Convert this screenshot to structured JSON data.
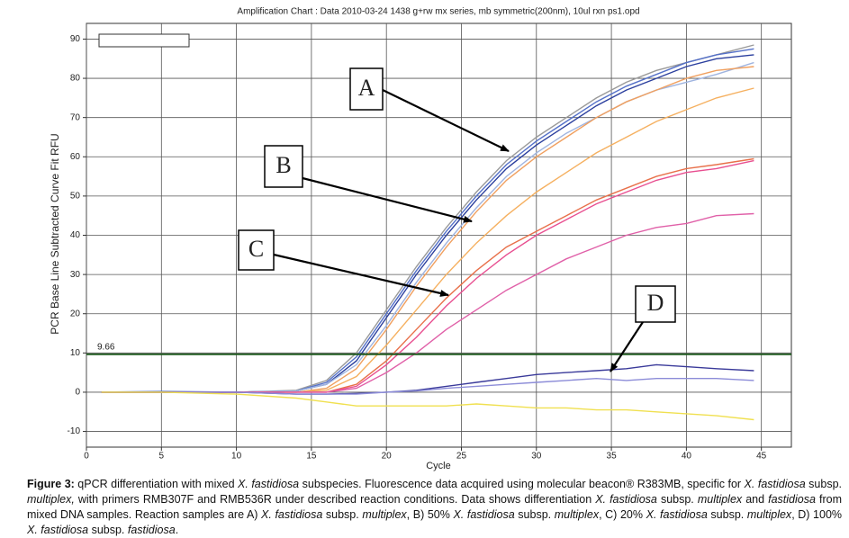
{
  "chart_data": {
    "type": "line",
    "title": "Amplification Chart : Data 2010-03-24 1438 g+rw mx series, mb symmetric(200nm), 10ul rxn ps1.opd",
    "x_label": "Cycle",
    "y_label": "PCR Base Line Subtracted Curve Fit RFU",
    "x": [
      1,
      5,
      10,
      14,
      16,
      18,
      20,
      22,
      24,
      26,
      28,
      30,
      32,
      34,
      36,
      38,
      40,
      42,
      44.5
    ],
    "series": [
      {
        "color": "#9a9a9a",
        "values": [
          0,
          0,
          0,
          0.5,
          3,
          10,
          21,
          32,
          42,
          51,
          59,
          65,
          70,
          75,
          79,
          82,
          84,
          86,
          88.5
        ]
      },
      {
        "color": "#2b3f9e",
        "values": [
          0,
          0,
          0,
          0.3,
          2,
          8,
          19,
          30,
          40,
          49,
          57,
          63,
          68,
          73,
          77,
          80,
          83,
          85,
          86
        ]
      },
      {
        "color": "#5470c8",
        "values": [
          0,
          0.2,
          0,
          0.3,
          2.5,
          9,
          20,
          31,
          41,
          50,
          58,
          64,
          69,
          74,
          78,
          81,
          84,
          86,
          87.5
        ]
      },
      {
        "color": "#9fb4e0",
        "values": [
          0,
          0,
          0,
          0.3,
          2,
          7,
          17,
          28,
          38,
          47,
          55,
          61,
          66,
          70,
          74,
          77,
          79,
          81,
          84
        ]
      },
      {
        "color": "#f0a060",
        "values": [
          0,
          0,
          0,
          0,
          1,
          6,
          16,
          27,
          37,
          46,
          54,
          60,
          65,
          70,
          74,
          77,
          80,
          82,
          83
        ]
      },
      {
        "color": "#f5b060",
        "values": [
          0,
          0,
          0,
          0,
          0.5,
          4,
          12,
          21,
          30,
          38,
          45,
          51,
          56,
          61,
          65,
          69,
          72,
          75,
          77.5
        ]
      },
      {
        "color": "#e8704a",
        "values": [
          0,
          0,
          0,
          0,
          0,
          2,
          8,
          16,
          24,
          31,
          37,
          41,
          45,
          49,
          52,
          55,
          57,
          58,
          59.5
        ]
      },
      {
        "color": "#e84f90",
        "values": [
          0,
          0,
          0,
          0,
          0,
          1.5,
          7,
          14,
          22,
          29,
          35,
          40,
          44,
          48,
          51,
          54,
          56,
          57,
          59
        ]
      },
      {
        "color": "#e060a8",
        "values": [
          0,
          0,
          0,
          0,
          0,
          1,
          5,
          10,
          16,
          21,
          26,
          30,
          34,
          37,
          40,
          42,
          43,
          45,
          45.5
        ]
      },
      {
        "color": "#3a3a9a",
        "values": [
          0,
          0,
          0,
          -0.5,
          -0.5,
          -0.3,
          0,
          0.5,
          1.5,
          2.5,
          3.5,
          4.5,
          5,
          5.5,
          6,
          7,
          6.5,
          6,
          5.5
        ]
      },
      {
        "color": "#8c8cd8",
        "values": [
          0,
          0,
          0,
          -0.5,
          -0.5,
          -0.5,
          0,
          0.3,
          1,
          1.5,
          2,
          2.5,
          3,
          3.5,
          3,
          3.5,
          3.5,
          3.5,
          3
        ]
      },
      {
        "color": "#f0e050",
        "values": [
          0,
          0,
          -0.5,
          -1.5,
          -2.5,
          -3.5,
          -3.5,
          -3.5,
          -3.5,
          -3,
          -3.5,
          -4,
          -4,
          -4.5,
          -4.5,
          -5,
          -5.5,
          -6,
          -7
        ]
      }
    ],
    "threshold": 9.66,
    "threshold_color": "#1e5a1e",
    "xlim": [
      0,
      47
    ],
    "ylim": [
      -14,
      94
    ],
    "xticks": [
      0,
      5,
      10,
      15,
      20,
      25,
      30,
      35,
      40,
      45
    ],
    "yticks": [
      -10,
      0,
      10,
      20,
      30,
      40,
      50,
      60,
      70,
      80,
      90
    ],
    "grid": true,
    "annotations": [
      "A",
      "B",
      "C",
      "D"
    ]
  },
  "caption": {
    "label": "Figure 3:",
    "parts": [
      " qPCR differentiation with mixed ",
      "X. fastidiosa",
      " subspecies. Fluorescence data acquired using molecular beacon® R383MB, specific for ",
      "X. fastidiosa",
      " subsp. ",
      "multiplex,",
      " with primers RMB307F and RMB536R under described reaction conditions. Data shows differentiation ",
      "X. fastidiosa",
      " subsp. ",
      "multiplex",
      " and ",
      "fastidiosa",
      " from mixed DNA samples. Reaction samples are A) ",
      "X. fastidiosa",
      " subsp. ",
      "multiplex",
      ", B) 50% ",
      "X. fastidiosa",
      " subsp. ",
      "multiplex",
      ", C) 20% ",
      "X. fastidiosa",
      " subsp. ",
      "multiplex",
      ", D) 100% ",
      "X. fastidiosa",
      " subsp. ",
      "fastidiosa",
      "."
    ]
  }
}
